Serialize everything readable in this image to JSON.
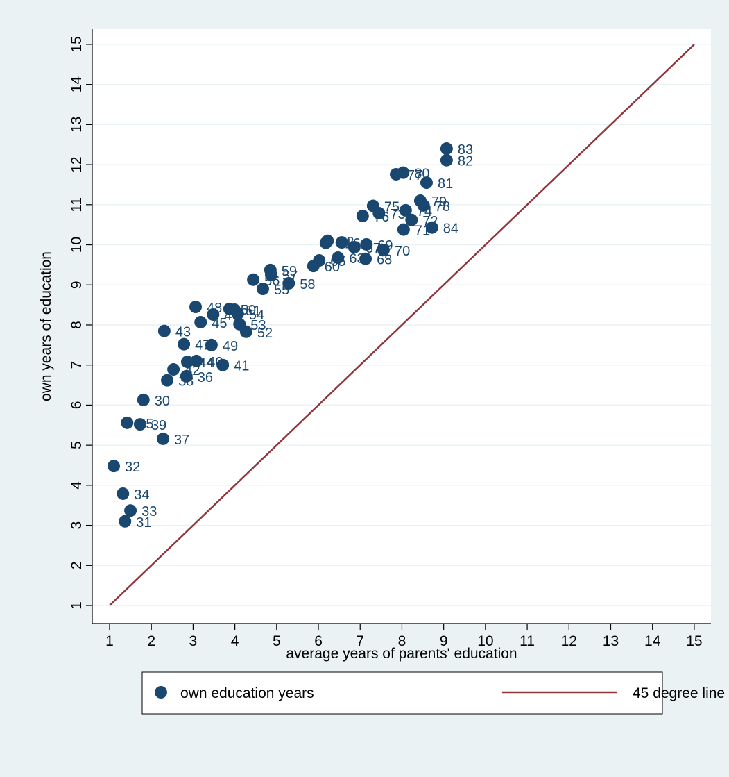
{
  "chart_data": {
    "type": "scatter",
    "xlabel": "average years of parents' education",
    "ylabel": "own years of education",
    "xlim": [
      0.585,
      15.4
    ],
    "ylim": [
      0.55,
      15.38
    ],
    "xticks": [
      1,
      2,
      3,
      4,
      5,
      6,
      7,
      8,
      9,
      10,
      11,
      12,
      13,
      14,
      15
    ],
    "yticks": [
      1,
      2,
      3,
      4,
      5,
      6,
      7,
      8,
      9,
      10,
      11,
      12,
      13,
      14,
      15
    ],
    "grid": true,
    "series": [
      {
        "name": "own education years",
        "type": "scatter",
        "color": "#1a476f",
        "x": [
          9.07,
          9.07,
          7.86,
          8.03,
          8.59,
          8.44,
          8.52,
          8.09,
          8.23,
          8.04,
          8.72,
          7.31,
          7.06,
          7.45,
          6.18,
          6.22,
          6.56,
          7.15,
          6.86,
          7.56,
          7.13,
          6.47,
          6.02,
          5.88,
          4.85,
          4.87,
          4.44,
          5.29,
          4.67,
          3.06,
          3.48,
          3.87,
          3.99,
          4.07,
          3.18,
          4.11,
          4.27,
          2.31,
          2.78,
          3.44,
          2.86,
          3.08,
          3.71,
          2.53,
          2.84,
          2.38,
          1.81,
          1.42,
          1.73,
          2.28,
          1.1,
          1.32,
          1.5,
          1.37
        ],
        "values": [
          12.4,
          12.11,
          11.76,
          11.8,
          11.55,
          11.1,
          10.98,
          10.86,
          10.62,
          10.38,
          10.43,
          10.97,
          10.72,
          10.79,
          10.05,
          10.1,
          10.06,
          10.01,
          9.94,
          9.87,
          9.65,
          9.68,
          9.61,
          9.47,
          9.37,
          9.25,
          9.13,
          9.04,
          8.9,
          8.45,
          8.26,
          8.4,
          8.38,
          8.28,
          8.07,
          8.02,
          7.83,
          7.85,
          7.52,
          7.5,
          7.08,
          7.1,
          7.0,
          6.89,
          6.72,
          6.62,
          6.13,
          5.56,
          5.52,
          5.16,
          4.48,
          3.79,
          3.37,
          3.1
        ],
        "point_labels": [
          "83",
          "82",
          "77",
          "80",
          "81",
          "79",
          "78",
          "74",
          "72",
          "71",
          "84",
          "75",
          "76",
          "73",
          "61",
          "62",
          "64",
          "69",
          "67",
          "70",
          "68",
          "63",
          "65",
          "60",
          "59",
          "57",
          "56",
          "58",
          "55",
          "48",
          "46",
          "50",
          "51",
          "54",
          "45",
          "53",
          "52",
          "43",
          "47",
          "49",
          "44",
          "40",
          "41",
          "42",
          "36",
          "38",
          "30",
          "35",
          "39",
          "37",
          "32",
          "34",
          "33",
          "31"
        ]
      },
      {
        "name": "45 degree line",
        "type": "line",
        "color": "#90353b",
        "x": [
          1,
          15
        ],
        "values": [
          1,
          15
        ]
      }
    ]
  }
}
